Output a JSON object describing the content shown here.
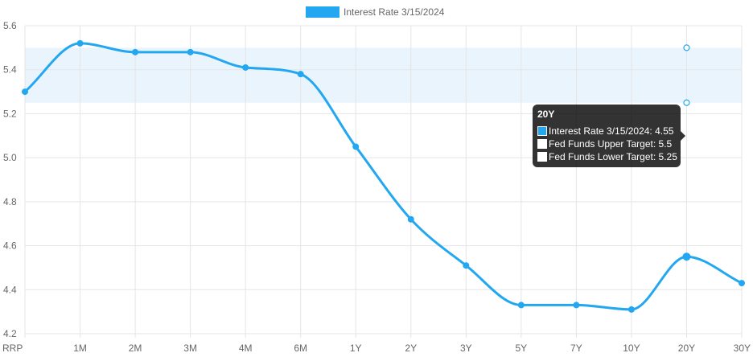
{
  "chart_data": {
    "type": "line",
    "categories": [
      "RRP",
      "1M",
      "2M",
      "3M",
      "4M",
      "6M",
      "1Y",
      "2Y",
      "3Y",
      "5Y",
      "7Y",
      "10Y",
      "20Y",
      "30Y"
    ],
    "series": [
      {
        "name": "Interest Rate 3/15/2024",
        "values": [
          5.3,
          5.52,
          5.48,
          5.48,
          5.41,
          5.38,
          5.05,
          4.72,
          4.51,
          4.33,
          4.33,
          4.31,
          4.55,
          4.43
        ],
        "color": "#22a7f0"
      },
      {
        "name": "Fed Funds Upper Target",
        "point_category": "20Y",
        "value": 5.5,
        "color": "#22a7f0"
      },
      {
        "name": "Fed Funds Lower Target",
        "point_category": "20Y",
        "value": 5.25,
        "color": "#22a7f0"
      }
    ],
    "target_band": {
      "low": 5.25,
      "high": 5.5,
      "fill": "#eaf4fd"
    },
    "ylim": [
      4.2,
      5.6
    ],
    "yticks": [
      "4.2",
      "4.4",
      "4.6",
      "4.8",
      "5.0",
      "5.2",
      "5.4",
      "5.6"
    ],
    "legend": {
      "label": "Interest Rate 3/15/2024",
      "position": "top-center",
      "color": "#22a7f0"
    },
    "grid": true,
    "tooltip": {
      "title": "20Y",
      "rows": [
        {
          "text": "Interest Rate 3/15/2024: 4.55",
          "swatch": "#22a7f0"
        },
        {
          "text": "Fed Funds Upper Target: 5.5",
          "swatch": "#ffffff"
        },
        {
          "text": "Fed Funds Lower Target: 5.25",
          "swatch": "#ffffff"
        }
      ]
    }
  }
}
